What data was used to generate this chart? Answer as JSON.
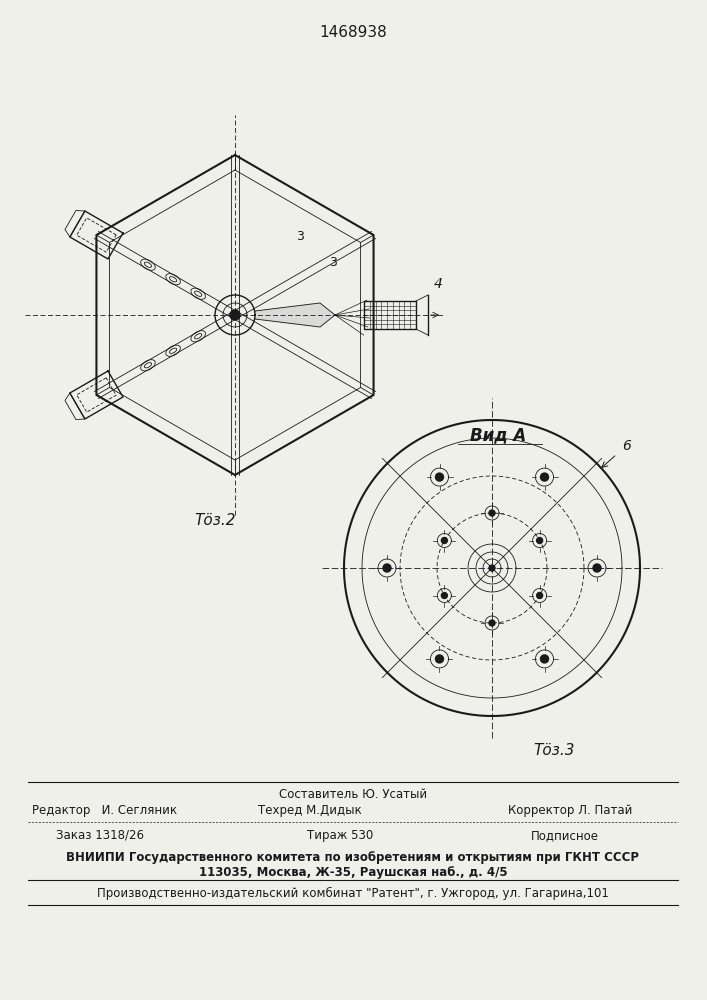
{
  "bg_color": "#f0f0eb",
  "patent_number": "1468938",
  "fig2_label": "Τӧз.2",
  "fig3_label": "Τӧз.3",
  "vid_a_label": "Вид A",
  "label_3a": "3",
  "label_3b": "3",
  "label_4": "4",
  "label_6": "6",
  "footer_sostavitel": "Составитель Ю. Усатый",
  "footer_editor": "Редактор   И. Сегляник",
  "footer_techred": "Техред М.Дидык",
  "footer_corrector": "Корректор Л. Патай",
  "footer_order": "Заказ 1318/26",
  "footer_tirazh": "Тираж 530",
  "footer_podpis": "Подписное",
  "footer_vniip1": "ВНИИПИ Государственного комитета по изобретениям и открытиям при ГКНТ СССР",
  "footer_vniip2": "113035, Москва, Ж-35, Раушская наб., д. 4/5",
  "footer_patent": "Производственно-издательский комбинат \"Pатент\", г. Ужгород, ул. Гагарина,101"
}
